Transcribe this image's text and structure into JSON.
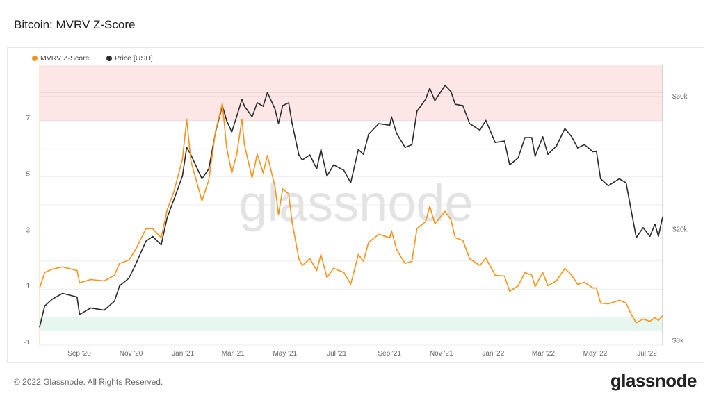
{
  "title": "Bitcoin: MVRV Z-Score",
  "footer": "© 2022 Glassnode. All Rights Reserved.",
  "logo_text": "glassnode",
  "watermark": "glassnode",
  "chart_data": {
    "type": "line",
    "title": "Bitcoin: MVRV Z-Score",
    "legend": {
      "placement": "top-left",
      "entries": [
        "MVRV Z-Score",
        "Price [USD]"
      ]
    },
    "x": {
      "type": "date",
      "range": [
        "2020-07-18",
        "2022-07-21"
      ],
      "ticks": [
        "2020-09-01",
        "2020-11-01",
        "2021-01-01",
        "2021-03-01",
        "2021-05-01",
        "2021-07-01",
        "2021-09-01",
        "2021-11-01",
        "2022-01-01",
        "2022-03-01",
        "2022-05-01",
        "2022-07-01"
      ],
      "tick_labels": [
        "Sep '20",
        "Nov '20",
        "Jan '21",
        "Mar '21",
        "May '21",
        "Jul '21",
        "Sep '21",
        "Nov '21",
        "Jan '22",
        "Mar '22",
        "May '22",
        "Jul '22"
      ]
    },
    "y_left": {
      "range": [
        -1,
        9
      ],
      "ticks": [
        -1,
        1,
        3,
        5,
        7
      ],
      "tick_labels": [
        "-1",
        "1",
        "3",
        "5",
        "7"
      ],
      "grid": true
    },
    "y_right": {
      "scale": "log",
      "range": [
        7700,
        78000
      ],
      "ticks": [
        8000,
        20000,
        60000
      ],
      "tick_labels": [
        "$8k",
        "$20k",
        "$60k"
      ]
    },
    "bands": [
      {
        "axis": "left",
        "from": 7,
        "to": 9,
        "color": "#fce6e6"
      },
      {
        "axis": "left",
        "from": -0.5,
        "to": 0,
        "color": "#e7f6ef"
      }
    ],
    "dates": [
      "2020-07-18",
      "2020-07-24",
      "2020-08-02",
      "2020-08-14",
      "2020-08-31",
      "2020-09-03",
      "2020-09-16",
      "2020-10-02",
      "2020-10-14",
      "2020-10-20",
      "2020-10-31",
      "2020-11-08",
      "2020-11-20",
      "2020-11-28",
      "2020-12-08",
      "2020-12-15",
      "2020-12-23",
      "2021-01-02",
      "2021-01-07",
      "2021-01-12",
      "2021-01-25",
      "2021-02-02",
      "2021-02-10",
      "2021-02-18",
      "2021-02-23",
      "2021-03-01",
      "2021-03-07",
      "2021-03-13",
      "2021-03-16",
      "2021-03-25",
      "2021-03-31",
      "2021-04-07",
      "2021-04-12",
      "2021-04-21",
      "2021-04-25",
      "2021-04-30",
      "2021-05-07",
      "2021-05-11",
      "2021-05-19",
      "2021-05-23",
      "2021-06-01",
      "2021-06-09",
      "2021-06-14",
      "2021-06-21",
      "2021-06-29",
      "2021-07-11",
      "2021-07-19",
      "2021-07-28",
      "2021-08-03",
      "2021-08-09",
      "2021-08-21",
      "2021-09-03",
      "2021-09-05",
      "2021-09-11",
      "2021-09-21",
      "2021-09-29",
      "2021-10-05",
      "2021-10-15",
      "2021-10-20",
      "2021-10-26",
      "2021-11-07",
      "2021-11-14",
      "2021-11-19",
      "2021-11-28",
      "2021-12-06",
      "2021-12-18",
      "2021-12-25",
      "2022-01-05",
      "2022-01-16",
      "2022-01-22",
      "2022-02-01",
      "2022-02-09",
      "2022-02-17",
      "2022-02-21",
      "2022-03-02",
      "2022-03-08",
      "2022-03-18",
      "2022-03-28",
      "2022-04-05",
      "2022-04-12",
      "2022-04-20",
      "2022-04-30",
      "2022-05-04",
      "2022-05-09",
      "2022-05-18",
      "2022-05-31",
      "2022-06-08",
      "2022-06-14",
      "2022-06-20",
      "2022-06-28",
      "2022-07-06",
      "2022-07-12",
      "2022-07-16",
      "2022-07-21"
    ],
    "series": [
      {
        "name": "MVRV Z-Score",
        "axis": "left",
        "color": "#f7931a",
        "values": [
          1.04,
          1.59,
          1.71,
          1.79,
          1.66,
          1.22,
          1.34,
          1.29,
          1.49,
          1.91,
          2.03,
          2.41,
          3.15,
          3.15,
          2.83,
          3.82,
          4.47,
          5.63,
          7.05,
          5.56,
          4.14,
          4.89,
          6.63,
          7.62,
          6.05,
          5.14,
          5.81,
          7.05,
          6.13,
          4.96,
          5.81,
          5.14,
          5.76,
          4.64,
          3.65,
          4.57,
          4.39,
          3.4,
          2.08,
          1.84,
          2.08,
          1.66,
          2.23,
          1.41,
          1.74,
          1.59,
          1.17,
          2.23,
          1.99,
          2.66,
          2.95,
          2.83,
          3.08,
          2.41,
          1.91,
          1.99,
          3.15,
          3.4,
          3.95,
          3.33,
          3.77,
          3.47,
          2.83,
          2.73,
          2.08,
          1.84,
          2.11,
          1.49,
          1.46,
          0.92,
          1.12,
          1.59,
          1.49,
          1.09,
          1.59,
          1.12,
          1.29,
          1.74,
          1.49,
          1.17,
          1.24,
          1.04,
          1.04,
          0.5,
          0.47,
          0.6,
          0.5,
          0.1,
          -0.2,
          -0.07,
          -0.15,
          -0.02,
          -0.12,
          0.05
        ]
      },
      {
        "name": "Price [USD]",
        "axis": "right",
        "color": "#2b2b2b",
        "values": [
          8950,
          10640,
          11260,
          11800,
          11460,
          9920,
          10460,
          10280,
          11070,
          12560,
          13370,
          15000,
          18150,
          18880,
          17620,
          22050,
          25600,
          31100,
          39400,
          37000,
          30400,
          33000,
          44700,
          55600,
          49200,
          44700,
          51000,
          58500,
          55300,
          50700,
          56900,
          55300,
          62000,
          54000,
          47900,
          55600,
          56900,
          48200,
          37000,
          35500,
          37000,
          33000,
          38700,
          31100,
          34100,
          32600,
          29400,
          38700,
          37200,
          43900,
          47900,
          47300,
          50700,
          44200,
          39400,
          40300,
          53100,
          58500,
          64200,
          57900,
          65700,
          62400,
          56200,
          55600,
          47900,
          45400,
          49200,
          41000,
          41500,
          34100,
          36100,
          42700,
          42700,
          36600,
          43000,
          37200,
          39800,
          46000,
          43000,
          39200,
          40300,
          38000,
          38200,
          30400,
          28700,
          30400,
          29400,
          23400,
          18700,
          20300,
          18900,
          20900,
          18900,
          22200
        ]
      }
    ]
  }
}
